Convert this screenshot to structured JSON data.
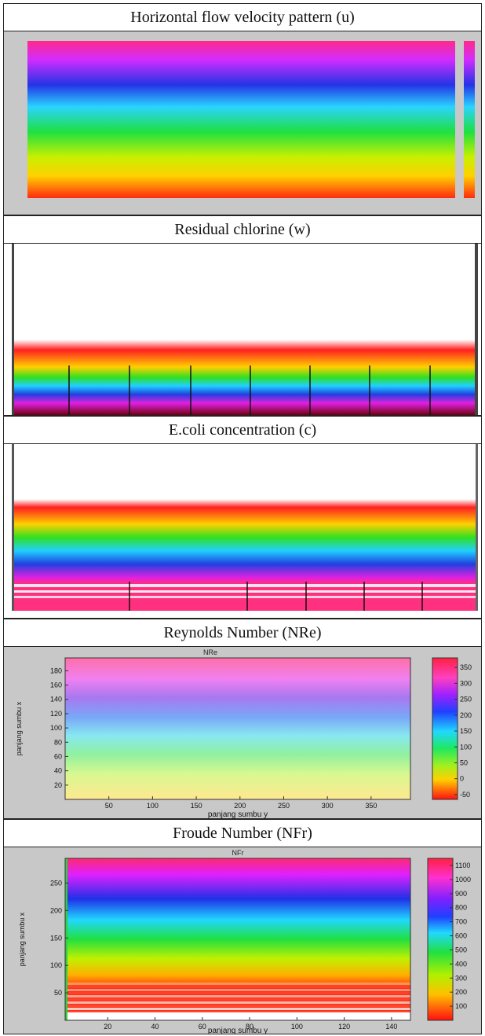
{
  "panels": [
    {
      "title": "Horizontal flow velocity pattern (u)"
    },
    {
      "title": "Residual chlorine (w)"
    },
    {
      "title": "E.coli concentration (c)"
    },
    {
      "title": "Reynolds Number (NRe)"
    },
    {
      "title": "Froude Number (NFr)"
    }
  ],
  "chart_data": [
    {
      "type": "heatmap",
      "title": "Horizontal flow velocity pattern (u)",
      "colormap": "hsv",
      "pattern": "horizontal bands, magenta at top through blue, cyan, green, yellow to red at bottom",
      "note": "axis tick labels and colorbar labels are illegible in the image"
    },
    {
      "type": "heatmap",
      "title": "Residual chlorine (w)",
      "colormap": "hsv",
      "pattern": "white upper region; bands red, yellow, green, cyan, blue, magenta, dark red near bottom",
      "grid": true
    },
    {
      "type": "heatmap",
      "title": "E.coli concentration (c)",
      "colormap": "hsv",
      "pattern": "white upper region; bands red, yellow, green, cyan, blue, magenta, then pink/white stripes at bottom",
      "grid": true
    },
    {
      "type": "heatmap",
      "title": "Reynolds Number (NRe)",
      "plot_title": "NRe",
      "xlabel": "panjang sumbu y",
      "ylabel": "panjang sumbu x",
      "x_ticks": [
        50,
        100,
        150,
        200,
        250,
        300,
        350
      ],
      "y_ticks": [
        20,
        40,
        60,
        80,
        100,
        120,
        140,
        160,
        180
      ],
      "xlim": [
        0,
        395
      ],
      "ylim": [
        0,
        198
      ],
      "colorbar_ticks": [
        -50,
        0,
        50,
        100,
        150,
        200,
        250,
        300,
        350
      ],
      "colorbar_range": [
        -65,
        380
      ],
      "pattern": "value increases from bottom (yellow) to top (pink)"
    },
    {
      "type": "heatmap",
      "title": "Froude Number (NFr)",
      "plot_title": "NFr",
      "xlabel": "panjang sumbu y",
      "ylabel": "panjang sumbu x",
      "x_ticks": [
        20,
        40,
        60,
        80,
        100,
        120,
        140
      ],
      "y_ticks": [
        50,
        100,
        150,
        200,
        250
      ],
      "xlim": [
        2,
        148
      ],
      "ylim": [
        0,
        295
      ],
      "colorbar_ticks": [
        100,
        200,
        300,
        400,
        500,
        600,
        700,
        800,
        900,
        1000,
        1100
      ],
      "colorbar_range": [
        0,
        1150
      ],
      "pattern": "value increases from bottom (red/white stripes) to top (magenta)"
    }
  ]
}
